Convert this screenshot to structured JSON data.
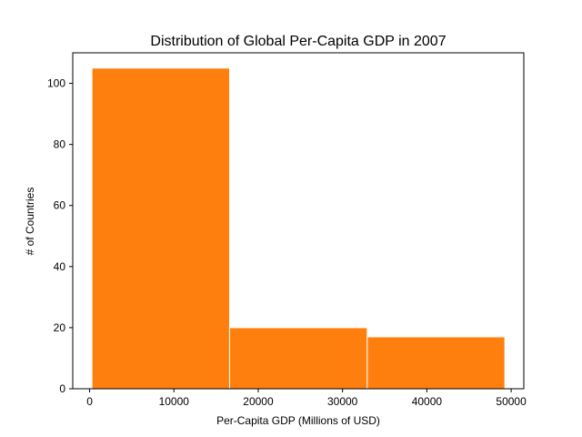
{
  "chart_data": {
    "type": "bar",
    "subtype": "histogram",
    "title": "Distribution of Global Per-Capita GDP in 2007",
    "xlabel": "Per-Capita GDP (Millions of USD)",
    "ylabel": "# of Countries",
    "bins": [
      {
        "start": 277.6,
        "end": 16603.3,
        "count": 105
      },
      {
        "start": 16603.3,
        "end": 32929.0,
        "count": 20
      },
      {
        "start": 32929.0,
        "end": 49254.7,
        "count": 17
      }
    ],
    "xlim": [
      -2000,
      51500
    ],
    "ylim": [
      0,
      110
    ],
    "xticks": [
      0,
      10000,
      20000,
      30000,
      40000,
      50000
    ],
    "xtick_labels": [
      "0",
      "10000",
      "20000",
      "30000",
      "40000",
      "50000"
    ],
    "yticks": [
      0,
      20,
      40,
      60,
      80,
      100
    ],
    "ytick_labels": [
      "0",
      "20",
      "40",
      "60",
      "80",
      "100"
    ],
    "bar_color": "#ff7f0e",
    "edge_color": "#ffffff",
    "grid": false,
    "legend": "none"
  }
}
